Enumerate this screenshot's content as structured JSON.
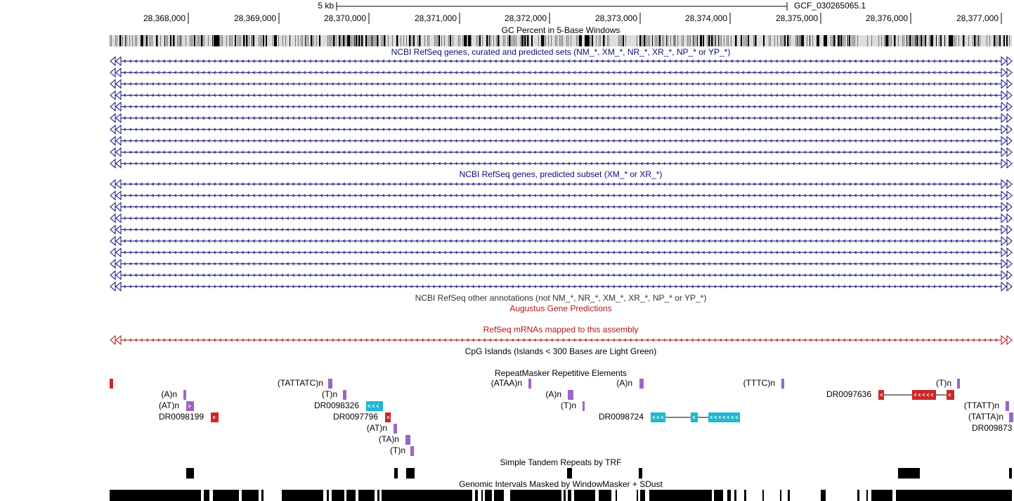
{
  "ruler": {
    "scale_label": "5 kb",
    "assembly": "GCF_030265065.1",
    "ticks": [
      "28,368,000",
      "28,369,000",
      "28,370,000",
      "28,371,000",
      "28,372,000",
      "28,373,000",
      "28,374,000",
      "28,375,000",
      "28,376,000",
      "28,377,000"
    ]
  },
  "tracks": {
    "gc_percent": "GC Percent in 5-Base Windows",
    "refseq_curated": "NCBI RefSeq genes, curated and predicted sets (NM_*, XM_*, NR_*, XR_*, NP_* or YP_*)",
    "refseq_predicted": "NCBI RefSeq genes, predicted subset (XM_* or XR_*)",
    "refseq_other": "NCBI RefSeq other annotations (not NM_*, NR_*, XM_*, XR_*, NP_* or YP_*)",
    "augustus": "Augustus Gene Predictions",
    "refseq_mrnas": "RefSeq mRNAs mapped to this assembly",
    "cpg": "CpG Islands (Islands < 300 Bases are Light Green)",
    "repeatmasker": "RepeatMasker Repetitive Elements",
    "trf": "Simple Tandem Repeats by TRF",
    "windowmasker": "Genomic Intervals Masked by WindowMasker + SDust"
  },
  "repeats": [
    "(TATTATC)n",
    "(ATAA)n",
    "(A)n",
    "(TTTC)n",
    "(T)n",
    "(A)n",
    "(T)n",
    "(A)n",
    "DR0097636",
    "(AT)n",
    "DR0098326",
    "(T)n",
    "(TTATT)n",
    "DR0098199",
    "DR0097796",
    "DR0098724",
    "(TATTA)n",
    "(AT)n",
    "DR009873",
    "(TA)n",
    "(T)n"
  ]
}
